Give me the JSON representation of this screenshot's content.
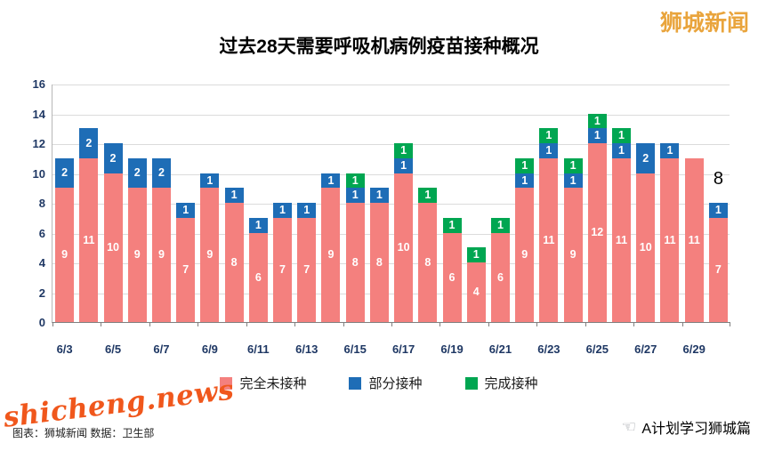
{
  "header": {
    "logo": "狮城新闻"
  },
  "colors": {
    "logo": "#E9A43C",
    "watermark": "#F0571C",
    "axis_text": "#1F3864"
  },
  "chart_data": {
    "type": "bar",
    "stacked": true,
    "title": "过去28天需要呼吸机病例疫苗接种概况",
    "grid": true,
    "legend_position": "bottom",
    "ylim": [
      0,
      16
    ],
    "ytick_step": 2,
    "x_tick_every": 2,
    "dates": [
      "6/3",
      "6/4",
      "6/5",
      "6/6",
      "6/7",
      "6/8",
      "6/9",
      "6/10",
      "6/11",
      "6/12",
      "6/13",
      "6/14",
      "6/15",
      "6/16",
      "6/17",
      "6/18",
      "6/19",
      "6/20",
      "6/21",
      "6/22",
      "6/23",
      "6/24",
      "6/25",
      "6/26",
      "6/27",
      "6/28",
      "6/29",
      "6/30"
    ],
    "x_tick_labels": [
      "6/3",
      "6/5",
      "6/7",
      "6/9",
      "6/11",
      "6/13",
      "6/15",
      "6/17",
      "6/19",
      "6/21",
      "6/23",
      "6/25",
      "6/27",
      "6/29"
    ],
    "series": [
      {
        "key": "unvaccinated",
        "name": "完全未接种",
        "color": "#F4807E",
        "values": [
          9,
          11,
          10,
          9,
          9,
          7,
          9,
          8,
          6,
          7,
          7,
          9,
          8,
          8,
          10,
          8,
          6,
          4,
          6,
          9,
          11,
          9,
          12,
          11,
          10,
          11,
          11,
          7
        ]
      },
      {
        "key": "partial",
        "name": "部分接种",
        "color": "#1E6DB6",
        "values": [
          2,
          2,
          2,
          2,
          2,
          1,
          1,
          1,
          1,
          1,
          1,
          1,
          1,
          1,
          1,
          0,
          0,
          0,
          0,
          1,
          1,
          1,
          1,
          1,
          2,
          1,
          0,
          1
        ]
      },
      {
        "key": "full",
        "name": "完成接种",
        "color": "#00A651",
        "values": [
          0,
          0,
          0,
          0,
          0,
          0,
          0,
          0,
          0,
          0,
          0,
          0,
          1,
          0,
          1,
          1,
          1,
          1,
          1,
          1,
          1,
          1,
          1,
          1,
          0,
          0,
          0,
          0
        ]
      }
    ],
    "annotation": {
      "text": "8",
      "bar_index": 27,
      "value_y": 9.7
    }
  },
  "footer": {
    "watermark": "shicheng.news",
    "credit": "图表：狮城新闻 数据：卫生部",
    "brand": "A计划学习狮城篇",
    "brand_icon": "☜"
  }
}
